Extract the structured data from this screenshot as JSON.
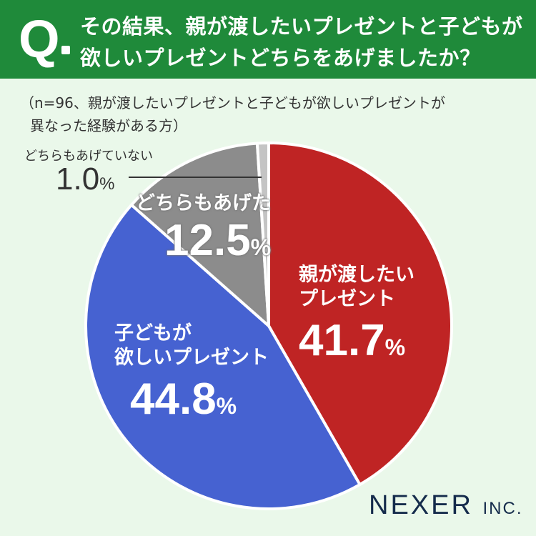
{
  "question": {
    "mark": "Q",
    "line1": "その結果、親が渡したいプレゼントと子どもが",
    "line2": "欲しいプレゼントどちらをあげましたか？"
  },
  "note": {
    "line1": "（n=96、親が渡したいプレゼントと子どもが欲しいプレゼントが",
    "line2": "異なった経験がある方）"
  },
  "chart_data": {
    "type": "pie",
    "slices": [
      {
        "label_line1": "親が渡したい",
        "label_line2": "プレゼント",
        "value": 41.7,
        "value_text": "41.7",
        "color": "#bf2424"
      },
      {
        "label_line1": "子どもが",
        "label_line2": "欲しいプレゼント",
        "value": 44.8,
        "value_text": "44.8",
        "color": "#4662d1"
      },
      {
        "label_line1": "どちらもあげた",
        "label_line2": "",
        "value": 12.5,
        "value_text": "12.5",
        "color": "#8c8c8c"
      },
      {
        "label_line1": "どちらもあげていない",
        "label_line2": "",
        "value": 1.0,
        "value_text": "1.0",
        "color": "#c4c4c4"
      }
    ],
    "unit": "%"
  },
  "brand": {
    "name": "NEXER",
    "suffix": "INC."
  }
}
